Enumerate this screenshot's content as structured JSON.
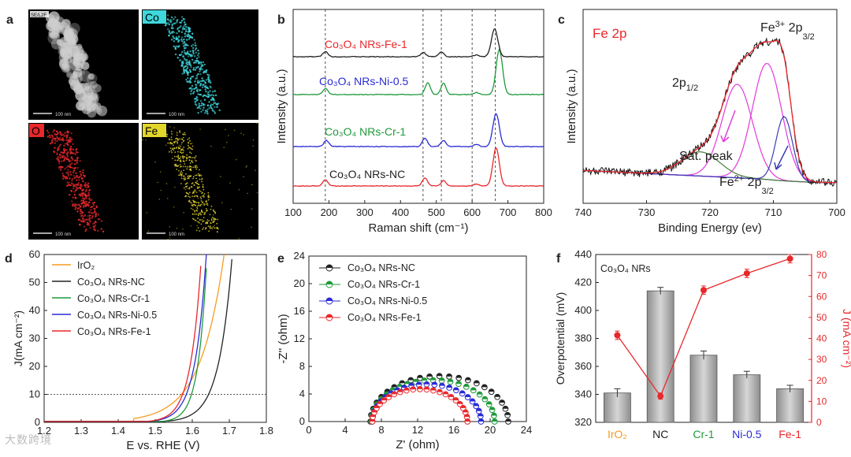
{
  "watermark": "大数跨境",
  "colors": {
    "black": "#222222",
    "red": "#e8282b",
    "blue": "#2b2bd6",
    "green": "#1f9a3a",
    "orange": "#f59b1f",
    "cyan": "#3fd7dc",
    "yellow": "#e3d62b",
    "pink": "#e23bd8",
    "navy": "#3b3bb5",
    "darkgreen": "#4a7f3a",
    "gray": "#8a8a8a"
  },
  "panel_a": {
    "letter": "a",
    "maps": [
      {
        "label": "",
        "color": "#ffffff",
        "scale": "100 nm",
        "header": "SE/L2F"
      },
      {
        "label": "Co",
        "color": "#3fd7dc",
        "scale": "100 nm"
      },
      {
        "label": "O",
        "color": "#e8282b",
        "scale": "100 nm"
      },
      {
        "label": "Fe",
        "color": "#e3d62b",
        "scale": "100 nm"
      }
    ]
  },
  "chart_data": [
    {
      "panel": "b",
      "type": "line",
      "xlabel": "Raman shift (cm⁻¹)",
      "ylabel": "Intensity (a.u.)",
      "xlim": [
        100,
        800
      ],
      "xticks": [
        100,
        200,
        300,
        400,
        500,
        600,
        700,
        800
      ],
      "reference_lines_x": [
        190,
        463,
        514,
        600,
        665
      ],
      "series": [
        {
          "name": "Co₃O₄ NRs-Fe-1",
          "color": "red",
          "offset": 3,
          "peaks": [
            [
              190,
              0.35
            ],
            [
              468,
              0.45
            ],
            [
              520,
              0.3
            ],
            [
              612,
              0.12
            ],
            [
              667,
              2.2
            ]
          ]
        },
        {
          "name": "Co₃O₄ NRs-Ni-0.5",
          "color": "blue",
          "offset": 2,
          "peaks": [
            [
              193,
              0.35
            ],
            [
              468,
              0.5
            ],
            [
              520,
              0.35
            ],
            [
              612,
              0.12
            ],
            [
              667,
              1.9
            ]
          ]
        },
        {
          "name": "Co₃O₄ NRs-Cr-1",
          "color": "green",
          "offset": 1,
          "peaks": [
            [
              190,
              0.35
            ],
            [
              476,
              0.7
            ],
            [
              520,
              0.65
            ],
            [
              612,
              0.12
            ],
            [
              676,
              2.6
            ]
          ]
        },
        {
          "name": "Co₃O₄ NRs-NC",
          "color": "black",
          "offset": 0,
          "peaks": [
            [
              190,
              0.3
            ],
            [
              464,
              0.25
            ],
            [
              514,
              0.28
            ],
            [
              612,
              0.1
            ],
            [
              663,
              1.6
            ]
          ]
        }
      ]
    },
    {
      "panel": "c",
      "type": "line",
      "title": "Fe 2p",
      "xlabel": "Binding Energy (ev)",
      "ylabel": "Intensity (a.u.)",
      "xlim": [
        740,
        700
      ],
      "xticks": [
        740,
        730,
        720,
        710,
        700
      ],
      "annotations": [
        "Fe³⁺ 2p₃/₂",
        "2p₁/₂",
        "Sat. peak",
        "Fe²⁺ 2p₃/₂"
      ],
      "components": [
        {
          "name": "Fe³⁺ 2p₃/₂",
          "center": 711.0,
          "height": 0.72,
          "width": 2.3,
          "color": "pink"
        },
        {
          "name": "Fe³⁺ satellite",
          "center": 715.7,
          "height": 0.58,
          "width": 2.4,
          "color": "pink"
        },
        {
          "name": "2p₁/₂",
          "center": 721.5,
          "height": 0.15,
          "width": 3.0,
          "color": "darkgreen"
        },
        {
          "name": "Fe²⁺ 2p₃/₂",
          "center": 708.3,
          "height": 0.4,
          "width": 1.3,
          "color": "navy"
        }
      ]
    },
    {
      "panel": "d",
      "type": "line",
      "xlabel": "E vs. RHE (V)",
      "ylabel": "J(mA cm⁻²)",
      "xlim": [
        1.2,
        1.8
      ],
      "ylim": [
        0,
        60
      ],
      "xticks": [
        1.2,
        1.3,
        1.4,
        1.5,
        1.6,
        1.7,
        1.8
      ],
      "yticks": [
        0,
        10,
        20,
        30,
        40,
        50,
        60
      ],
      "reference_line_y": 10,
      "series": [
        {
          "name": "IrO₂",
          "color": "orange",
          "onset": 1.44,
          "e10": 1.571,
          "e60": 1.686
        },
        {
          "name": "Co₃O₄ NRs-NC",
          "color": "black",
          "onset": 1.5,
          "e10": 1.644,
          "e60": 1.708
        },
        {
          "name": "Co₃O₄ NRs-Cr-1",
          "color": "green",
          "onset": 1.47,
          "e10": 1.598,
          "e60": 1.64
        },
        {
          "name": "Co₃O₄ NRs-Ni-0.5",
          "color": "blue",
          "onset": 1.46,
          "e10": 1.584,
          "e60": 1.638
        },
        {
          "name": "Co₃O₄ NRs-Fe-1",
          "color": "red",
          "onset": 1.45,
          "e10": 1.574,
          "e60": 1.625
        }
      ]
    },
    {
      "panel": "e",
      "type": "scatter",
      "xlabel": "Z' (ohm)",
      "ylabel": "-Z'' (ohm)",
      "xlim": [
        0,
        24
      ],
      "ylim": [
        0,
        24
      ],
      "xticks": [
        0,
        4,
        8,
        12,
        16,
        20,
        24
      ],
      "yticks": [
        0,
        4,
        8,
        12,
        16,
        20,
        24
      ],
      "series": [
        {
          "name": "Co₃O₄ NRs-NC",
          "color": "black",
          "x_start": 6.8,
          "x_end": 22.0,
          "peak": 6.6
        },
        {
          "name": "Co₃O₄ NRs-Cr-1",
          "color": "green",
          "x_start": 6.9,
          "x_end": 20.5,
          "peak": 6.0
        },
        {
          "name": "Co₃O₄ NRs-Ni-0.5",
          "color": "blue",
          "x_start": 7.0,
          "x_end": 19.0,
          "peak": 5.4
        },
        {
          "name": "Co₃O₄ NRs-Fe-1",
          "color": "red",
          "x_start": 7.0,
          "x_end": 17.5,
          "peak": 4.7
        }
      ]
    },
    {
      "panel": "f",
      "type": "bar",
      "title": "Co₃O₄ NRs",
      "categories": [
        "IrO₂",
        "NC",
        "Cr-1",
        "Ni-0.5",
        "Fe-1"
      ],
      "category_colors": [
        "orange",
        "black",
        "green",
        "blue",
        "red"
      ],
      "ylabel": "Overpotential (mV)",
      "ylim": [
        320,
        440
      ],
      "yticks": [
        320,
        340,
        360,
        380,
        400,
        420,
        440
      ],
      "values": [
        341,
        414,
        368,
        354,
        344
      ],
      "errors": [
        3,
        2.5,
        3,
        2.5,
        2.5
      ],
      "secondary": {
        "ylabel": "J (mA cm⁻²)",
        "ylim": [
          0,
          80
        ],
        "yticks": [
          0,
          10,
          20,
          30,
          40,
          50,
          60,
          70,
          80
        ],
        "values": [
          41.5,
          12.5,
          63,
          71,
          78
        ],
        "errors": [
          2,
          1.5,
          2,
          2,
          2
        ]
      }
    }
  ]
}
